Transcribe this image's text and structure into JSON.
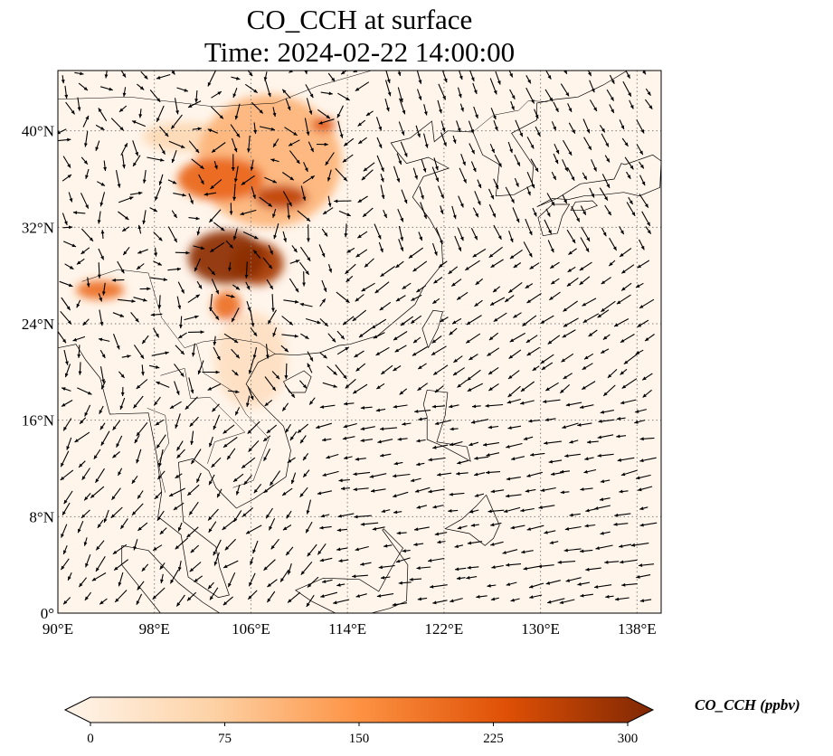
{
  "title": {
    "line1": "CO_CCH at surface",
    "line2": "Time: 2024-02-22 14:00:00"
  },
  "map": {
    "extent": {
      "lon_min": 90,
      "lon_max": 140,
      "lat_min": 0,
      "lat_max": 45
    },
    "lon_ticks": [
      {
        "value": 90,
        "label": "90°E"
      },
      {
        "value": 98,
        "label": "98°E"
      },
      {
        "value": 106,
        "label": "106°E"
      },
      {
        "value": 114,
        "label": "114°E"
      },
      {
        "value": 122,
        "label": "122°E"
      },
      {
        "value": 130,
        "label": "130°E"
      },
      {
        "value": 138,
        "label": "138°E"
      }
    ],
    "lat_ticks": [
      {
        "value": 0,
        "label": "0°"
      },
      {
        "value": 8,
        "label": "8°N"
      },
      {
        "value": 16,
        "label": "16°N"
      },
      {
        "value": 24,
        "label": "24°N"
      },
      {
        "value": 32,
        "label": "32°N"
      },
      {
        "value": 40,
        "label": "40°N"
      }
    ],
    "gridlines": true,
    "background_color": "#fff5eb",
    "coastline_color": "#000000",
    "wind_vectors": "black arrows",
    "plumes": [
      {
        "lon": 104.0,
        "lat": 29.5,
        "rlon": 3.2,
        "rlat": 2.2,
        "value": 290
      },
      {
        "lon": 106.5,
        "lat": 29.0,
        "rlon": 2.2,
        "rlat": 1.8,
        "value": 270
      },
      {
        "lon": 103.5,
        "lat": 36.0,
        "rlon": 3.6,
        "rlat": 1.8,
        "value": 200
      },
      {
        "lon": 108.5,
        "lat": 34.5,
        "rlon": 2.2,
        "rlat": 1.0,
        "value": 250
      },
      {
        "lon": 112.0,
        "lat": 40.5,
        "rlon": 1.0,
        "rlat": 0.6,
        "value": 220
      },
      {
        "lon": 107.5,
        "lat": 37.5,
        "rlon": 6.0,
        "rlat": 5.5,
        "value": 110
      },
      {
        "lon": 104.0,
        "lat": 25.5,
        "rlon": 1.2,
        "rlat": 1.2,
        "value": 190
      },
      {
        "lon": 93.5,
        "lat": 26.8,
        "rlon": 2.0,
        "rlat": 0.8,
        "value": 190
      },
      {
        "lon": 106.0,
        "lat": 21.0,
        "rlon": 3.0,
        "rlat": 4.0,
        "value": 45
      },
      {
        "lon": 100.5,
        "lat": 39.5,
        "rlon": 3.5,
        "rlat": 1.2,
        "value": 60
      }
    ]
  },
  "colorbar": {
    "title": "CO_CCH (ppbv)",
    "min": 0,
    "max": 300,
    "ticks": [
      {
        "value": 0,
        "label": "0"
      },
      {
        "value": 75,
        "label": "75"
      },
      {
        "value": 150,
        "label": "150"
      },
      {
        "value": 225,
        "label": "225"
      },
      {
        "value": 300,
        "label": "300"
      }
    ],
    "colors": [
      "#fff5eb",
      "#fdd2a6",
      "#fd9243",
      "#df5005",
      "#7f2704"
    ]
  }
}
